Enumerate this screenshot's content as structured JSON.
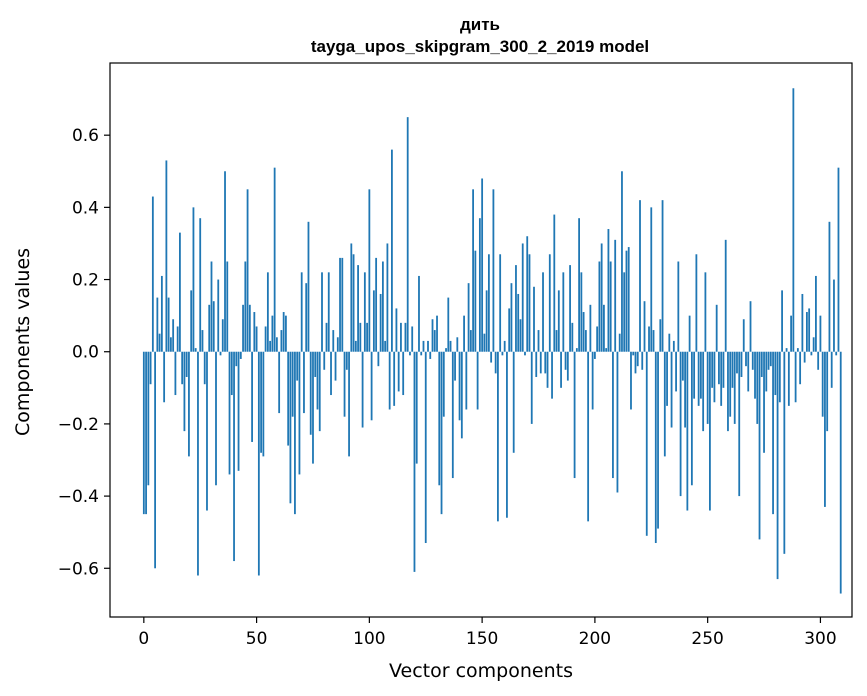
{
  "chart_data": {
    "type": "bar",
    "title": "дить",
    "subtitle": "tayga_upos_skipgram_300_2_2019 model",
    "xlabel": "Vector components",
    "ylabel": "Components values",
    "xlim": [
      -15,
      314
    ],
    "ylim": [
      -0.735,
      0.8
    ],
    "xticks": [
      0,
      50,
      100,
      150,
      200,
      250,
      300
    ],
    "xtick_labels": [
      "0",
      "50",
      "100",
      "150",
      "200",
      "250",
      "300"
    ],
    "yticks": [
      -0.6,
      -0.4,
      -0.2,
      0.0,
      0.2,
      0.4,
      0.6
    ],
    "ytick_labels": [
      "−0.6",
      "−0.4",
      "−0.2",
      "0.0",
      "0.2",
      "0.4",
      "0.6"
    ],
    "bar_color": "#1f77b4",
    "grid": false,
    "values": [
      -0.45,
      -0.45,
      -0.37,
      -0.09,
      0.43,
      -0.6,
      0.15,
      0.05,
      0.21,
      -0.14,
      0.53,
      0.15,
      0.04,
      0.09,
      -0.12,
      0.07,
      0.33,
      -0.09,
      -0.22,
      -0.07,
      -0.29,
      0.17,
      0.4,
      0.01,
      -0.62,
      0.37,
      0.06,
      -0.09,
      -0.44,
      0.13,
      0.25,
      0.14,
      -0.37,
      0.2,
      -0.01,
      0.09,
      0.5,
      0.25,
      -0.34,
      -0.12,
      -0.58,
      -0.04,
      -0.33,
      -0.02,
      0.13,
      0.25,
      0.45,
      0.13,
      -0.25,
      0.11,
      0.07,
      -0.62,
      -0.28,
      -0.29,
      0.07,
      0.22,
      0.03,
      0.1,
      0.51,
      0.04,
      -0.17,
      0.06,
      0.11,
      0.1,
      -0.26,
      -0.42,
      -0.18,
      -0.45,
      -0.08,
      -0.34,
      0.22,
      -0.17,
      0.19,
      0.36,
      -0.23,
      -0.31,
      -0.07,
      -0.16,
      -0.22,
      0.22,
      -0.05,
      0.08,
      0.22,
      -0.12,
      0.06,
      -0.08,
      0.04,
      0.26,
      0.26,
      -0.18,
      -0.05,
      -0.29,
      0.3,
      0.27,
      0.03,
      0.24,
      0.08,
      -0.21,
      0.22,
      0.08,
      0.45,
      -0.19,
      0.17,
      0.26,
      -0.04,
      0.16,
      0.25,
      0.03,
      0.3,
      -0.16,
      0.56,
      -0.15,
      0.12,
      -0.11,
      0.08,
      -0.12,
      0.08,
      0.65,
      -0.01,
      0.07,
      -0.61,
      -0.31,
      0.21,
      -0.01,
      0.03,
      -0.53,
      0.03,
      -0.02,
      0.09,
      0.06,
      0.1,
      -0.37,
      -0.45,
      -0.18,
      0.01,
      0.15,
      0.03,
      -0.35,
      -0.08,
      0.04,
      -0.19,
      -0.24,
      0.1,
      -0.16,
      0.19,
      0.06,
      0.45,
      0.28,
      -0.16,
      0.37,
      0.48,
      0.05,
      0.17,
      0.27,
      -0.03,
      0.45,
      -0.06,
      -0.47,
      0.27,
      -0.01,
      0.03,
      -0.46,
      0.12,
      0.19,
      -0.28,
      0.24,
      0.16,
      0.09,
      0.3,
      -0.01,
      0.32,
      0.27,
      -0.2,
      0.18,
      -0.07,
      0.06,
      -0.06,
      0.22,
      -0.06,
      -0.1,
      0.27,
      -0.13,
      0.38,
      0.06,
      0.17,
      -0.1,
      0.22,
      -0.05,
      -0.08,
      0.24,
      0.08,
      -0.35,
      0.01,
      0.37,
      0.22,
      0.11,
      0.06,
      -0.47,
      0.13,
      -0.16,
      -0.02,
      0.07,
      0.25,
      0.3,
      0.13,
      0.01,
      0.34,
      0.25,
      -0.35,
      0.31,
      -0.39,
      0.05,
      0.5,
      0.22,
      0.28,
      0.29,
      -0.16,
      -0.01,
      -0.06,
      -0.04,
      0.42,
      -0.05,
      0.14,
      -0.51,
      0.07,
      0.4,
      0.06,
      -0.53,
      -0.49,
      0.09,
      0.42,
      -0.29,
      -0.15,
      0.05,
      -0.21,
      0.03,
      -0.11,
      0.25,
      -0.4,
      -0.08,
      -0.21,
      -0.44,
      0.1,
      -0.37,
      -0.13,
      0.27,
      -0.15,
      -0.13,
      -0.22,
      0.22,
      -0.2,
      -0.44,
      -0.1,
      -0.14,
      0.13,
      -0.09,
      -0.15,
      -0.1,
      0.31,
      -0.22,
      -0.18,
      -0.1,
      -0.2,
      -0.06,
      -0.4,
      -0.07,
      0.09,
      -0.04,
      -0.11,
      0.14,
      -0.05,
      -0.13,
      -0.2,
      -0.52,
      -0.07,
      -0.28,
      -0.11,
      -0.05,
      -0.04,
      -0.45,
      -0.12,
      -0.63,
      -0.14,
      0.17,
      -0.56,
      0.01,
      -0.15,
      0.1,
      0.73,
      -0.14,
      0.01,
      -0.09,
      0.16,
      -0.03,
      0.11,
      0.12,
      -0.01,
      0.04,
      0.21,
      -0.05,
      0.1,
      -0.18,
      -0.43,
      -0.22,
      0.36,
      -0.1,
      0.2,
      -0.01,
      0.51,
      -0.67
    ]
  }
}
